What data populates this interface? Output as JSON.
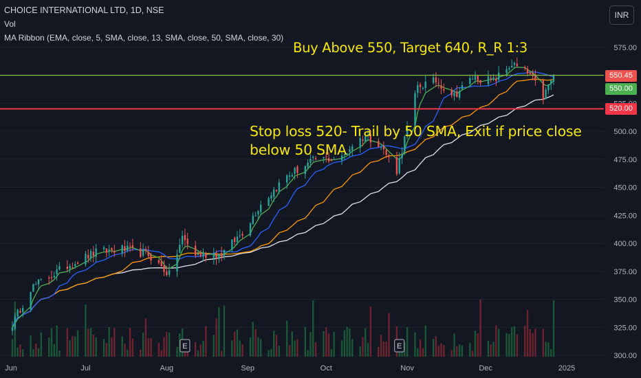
{
  "header": {
    "title": "CHOICE INTERNATIONAL LTD, 1D, NSE",
    "volume_label": "Vol",
    "ma_label": "MA Ribbon (EMA, close, 5, SMA, close, 13, SMA, close, 50, SMA, close, 30)",
    "currency": "INR"
  },
  "annotations": {
    "buy": "Buy Above 550, Target 640, R_R 1:3",
    "stop_line1": "Stop loss 520- Trail by 50 SMA, Exit if price close",
    "stop_line2": "below 50 SMA"
  },
  "price_labels": {
    "last": "550.45",
    "entry": "550.00",
    "stop": "520.00"
  },
  "colors": {
    "background": "#131722",
    "up": "#26a69a",
    "down": "#ef5350",
    "buy_line": "#8bc34a",
    "stop_line": "#f23645",
    "annotation": "#f5e50a",
    "ema5": "#4caf50",
    "sma13": "#2962ff",
    "sma30": "#ff9800",
    "sma50": "#e0e3eb"
  },
  "earnings_marker": "E",
  "chart_data": {
    "type": "candlestick",
    "title": "CHOICE INTERNATIONAL LTD, 1D, NSE",
    "yticks": [
      "300.00",
      "325.00",
      "350.00",
      "375.00",
      "400.00",
      "425.00",
      "450.00",
      "475.00",
      "500.00",
      "525.00",
      "550.00",
      "575.00"
    ],
    "xticks": [
      "Jun",
      "Jul",
      "Aug",
      "Sep",
      "Oct",
      "Nov",
      "Dec",
      "2025"
    ],
    "ylim": [
      298,
      588
    ],
    "horizontal_lines": [
      550,
      520
    ],
    "last_price": 550.45,
    "earnings_dates": [
      "2024-08-08",
      "2024-10-29"
    ],
    "approx_price_path": [
      {
        "date": "2024-06-03",
        "close": 328
      },
      {
        "date": "2024-06-10",
        "close": 360
      },
      {
        "date": "2024-06-24",
        "close": 380
      },
      {
        "date": "2024-07-05",
        "close": 392
      },
      {
        "date": "2024-07-15",
        "close": 395
      },
      {
        "date": "2024-07-25",
        "close": 390
      },
      {
        "date": "2024-08-02",
        "close": 372
      },
      {
        "date": "2024-08-07",
        "close": 405
      },
      {
        "date": "2024-08-12",
        "close": 390
      },
      {
        "date": "2024-08-22",
        "close": 390
      },
      {
        "date": "2024-08-30",
        "close": 410
      },
      {
        "date": "2024-09-06",
        "close": 435
      },
      {
        "date": "2024-09-16",
        "close": 460
      },
      {
        "date": "2024-09-27",
        "close": 475
      },
      {
        "date": "2024-10-07",
        "close": 476
      },
      {
        "date": "2024-10-11",
        "close": 488
      },
      {
        "date": "2024-10-16",
        "close": 496
      },
      {
        "date": "2024-10-21",
        "close": 490
      },
      {
        "date": "2024-10-28",
        "close": 465
      },
      {
        "date": "2024-11-05",
        "close": 540
      },
      {
        "date": "2024-11-12",
        "close": 545
      },
      {
        "date": "2024-11-19",
        "close": 532
      },
      {
        "date": "2024-11-26",
        "close": 548
      },
      {
        "date": "2024-12-04",
        "close": 545
      },
      {
        "date": "2024-12-11",
        "close": 560
      },
      {
        "date": "2024-12-18",
        "close": 550
      },
      {
        "date": "2024-12-23",
        "close": 530
      },
      {
        "date": "2024-12-27",
        "close": 550.45
      }
    ]
  }
}
